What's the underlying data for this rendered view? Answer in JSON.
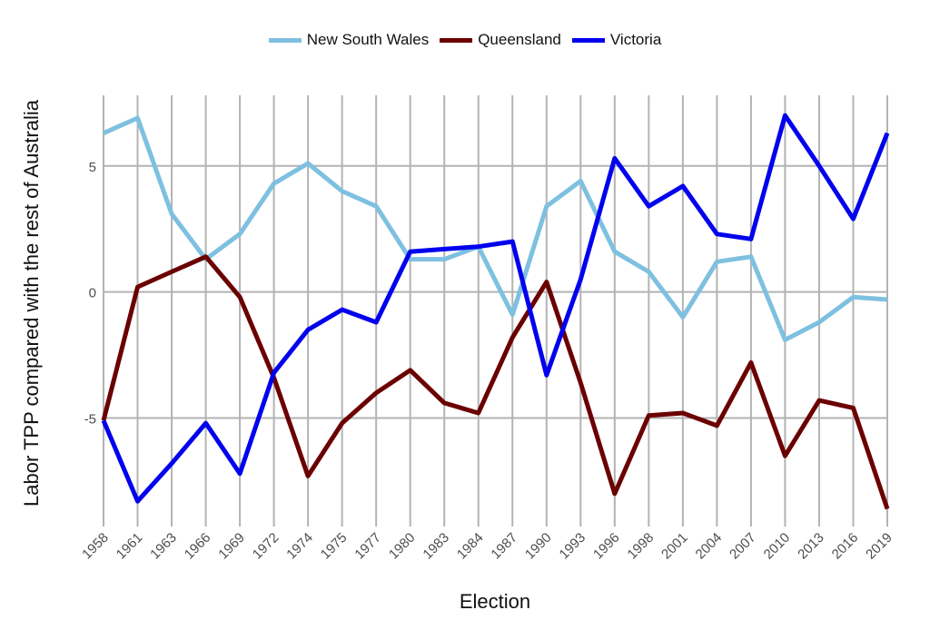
{
  "chart_data": {
    "type": "line",
    "title": "",
    "xlabel": "Election",
    "ylabel": "Labor TPP compared with the rest of Australia",
    "categories": [
      "1958",
      "1961",
      "1963",
      "1966",
      "1969",
      "1972",
      "1974",
      "1975",
      "1977",
      "1980",
      "1983",
      "1984",
      "1987",
      "1990",
      "1993",
      "1996",
      "1998",
      "2001",
      "2004",
      "2007",
      "2010",
      "2013",
      "2016",
      "2019"
    ],
    "ylim": [
      -9.3,
      7.8
    ],
    "yticks": [
      -5,
      0,
      5
    ],
    "ytick_labels": [
      "-5",
      "0",
      "5"
    ],
    "grid": true,
    "legend_position": "top",
    "series": [
      {
        "name": "New South Wales",
        "color": "#7ec0e0",
        "values": [
          6.3,
          6.9,
          3.1,
          1.3,
          2.3,
          4.3,
          5.1,
          4.0,
          3.4,
          1.3,
          1.3,
          1.8,
          -0.9,
          3.4,
          4.4,
          1.6,
          0.8,
          -1.0,
          1.2,
          1.4,
          -1.9,
          -1.2,
          -0.2,
          -0.3
        ]
      },
      {
        "name": "Queensland",
        "color": "#6b0000",
        "values": [
          -5.1,
          0.2,
          0.8,
          1.4,
          -0.2,
          -3.4,
          -7.3,
          -5.2,
          -4.0,
          -3.1,
          -4.4,
          -4.8,
          -1.8,
          0.4,
          -3.6,
          -8.0,
          -4.9,
          -4.8,
          -5.3,
          -2.8,
          -6.5,
          -4.3,
          -4.6,
          -8.6
        ]
      },
      {
        "name": "Victoria",
        "color": "#0000ee",
        "values": [
          -5.1,
          -8.3,
          -6.8,
          -5.2,
          -7.2,
          -3.2,
          -1.5,
          -0.7,
          -1.2,
          1.6,
          1.7,
          1.8,
          2.0,
          -3.3,
          0.5,
          5.3,
          3.4,
          4.2,
          2.3,
          2.1,
          7.0,
          5.0,
          2.9,
          6.3
        ]
      }
    ]
  }
}
